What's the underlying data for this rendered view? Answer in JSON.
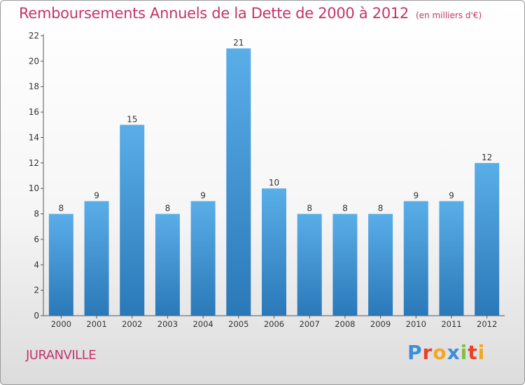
{
  "header": {
    "title": "Remboursements Annuels de la Dette de 2000 à 2012",
    "unit": "(en milliers d'€)"
  },
  "commune": "JURANVILLE",
  "logo": {
    "letters": [
      {
        "ch": "P",
        "color": "#3a8fd8"
      },
      {
        "ch": "r",
        "color": "#e8412c"
      },
      {
        "ch": "o",
        "color": "#f5a623"
      },
      {
        "ch": "x",
        "color": "#3a8fd8"
      },
      {
        "ch": "i",
        "color": "#7cc242"
      },
      {
        "ch": "t",
        "color": "#e8412c"
      },
      {
        "ch": "i",
        "color": "#f5a623"
      }
    ]
  },
  "colors": {
    "bar_top": "#5aaee8",
    "bar_bottom": "#2a78b8",
    "accent": "#c4346a"
  },
  "chart_data": {
    "type": "bar",
    "categories": [
      "2000",
      "2001",
      "2002",
      "2003",
      "2004",
      "2005",
      "2006",
      "2007",
      "2008",
      "2009",
      "2010",
      "2011",
      "2012"
    ],
    "values": [
      8,
      9,
      15,
      8,
      9,
      21,
      10,
      8,
      8,
      8,
      9,
      9,
      12
    ],
    "ylim": [
      0,
      22
    ],
    "yticks": [
      0,
      2,
      4,
      6,
      8,
      10,
      12,
      14,
      16,
      18,
      20,
      22
    ],
    "grid": false,
    "data_labels": true
  }
}
